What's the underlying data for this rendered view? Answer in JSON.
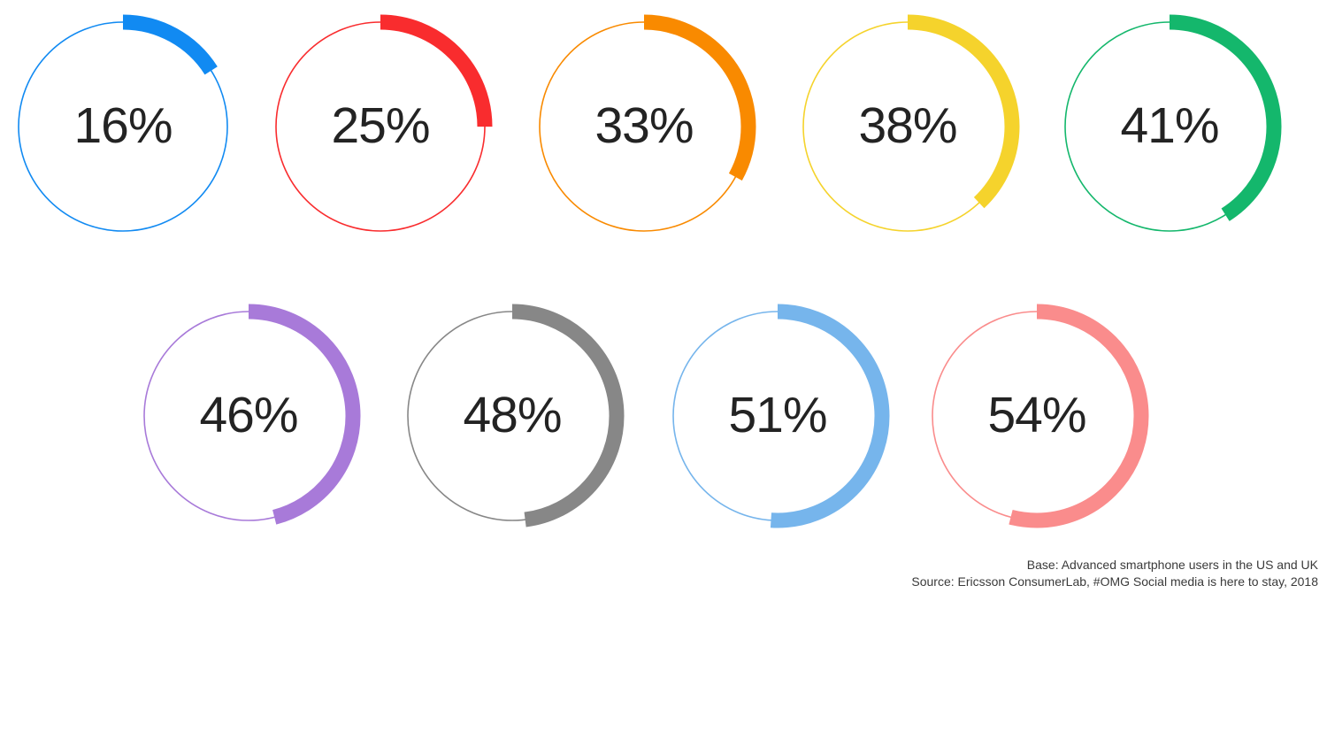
{
  "chart_data": {
    "type": "donut-grid",
    "title": "",
    "unit": "%",
    "values": [
      16,
      25,
      33,
      38,
      41,
      46,
      48,
      51,
      54
    ],
    "labels": [
      "16%",
      "25%",
      "33%",
      "38%",
      "41%",
      "46%",
      "48%",
      "51%",
      "54%"
    ],
    "colors": [
      "#118af2",
      "#f92c2e",
      "#f98a00",
      "#f5d32c",
      "#14b76c",
      "#a87ad9",
      "#878787",
      "#76b5ec",
      "#fa8c8c"
    ],
    "layout_hint": "two rows: five donuts on top row, four donuts centered on second row; each arc starts at 12 o'clock and sweeps clockwise by its percentage; thin full ring in same color behind thick arc"
  },
  "footnote": {
    "base": "Base: Advanced smartphone users in the US and UK",
    "source": "Source: Ericsson ConsumerLab, #OMG Social media is here to stay, 2018"
  },
  "palette": {
    "background": "#ffffff",
    "value_text": "#232323",
    "footnote_text": "#3a3a3a"
  }
}
